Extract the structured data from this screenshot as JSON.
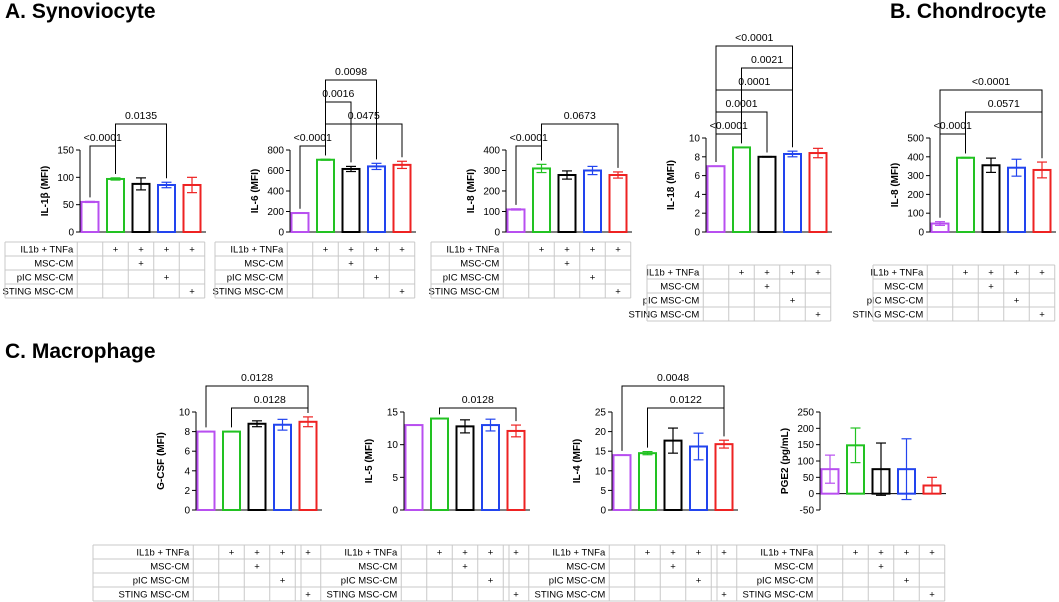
{
  "sections": {
    "a": "A. Synoviocyte",
    "b": "B. Chondrocyte",
    "c": "C. Macrophage"
  },
  "colors": [
    "#b84ff0",
    "#22c222",
    "#000000",
    "#2244ee",
    "#ee2222"
  ],
  "condition_table": {
    "rows": [
      "IL1b + TNFa",
      "MSC-CM",
      "pIC MSC-CM",
      "STING MSC-CM"
    ],
    "marks": [
      [
        "",
        "+",
        "+",
        "+",
        "+"
      ],
      [
        "",
        "",
        "+",
        "",
        ""
      ],
      [
        "",
        "",
        "",
        "+",
        ""
      ],
      [
        "",
        "",
        "",
        "",
        "+"
      ]
    ]
  },
  "chart_data": [
    {
      "id": "syn-il1b",
      "type": "bar",
      "ylabel": "IL-1β (MFI)",
      "ylim": [
        0,
        150
      ],
      "yticks": [
        0,
        50,
        100,
        150
      ],
      "values": [
        55,
        97,
        88,
        86,
        86
      ],
      "errors": [
        1,
        2,
        11,
        5,
        14
      ],
      "comparisons": [
        {
          "from": 0,
          "to": 1,
          "label": "<0.0001"
        },
        {
          "from": 1,
          "to": 3,
          "label": "0.0135"
        }
      ]
    },
    {
      "id": "syn-il6",
      "type": "bar",
      "ylabel": "IL-6 (MFI)",
      "ylim": [
        0,
        800
      ],
      "yticks": [
        0,
        200,
        400,
        600,
        800
      ],
      "values": [
        185,
        705,
        615,
        640,
        655
      ],
      "errors": [
        3,
        5,
        25,
        30,
        35
      ],
      "comparisons": [
        {
          "from": 0,
          "to": 1,
          "label": "<0.0001"
        },
        {
          "from": 1,
          "to": 4,
          "label": "0.0475"
        },
        {
          "from": 1,
          "to": 2,
          "label": "0.0016"
        },
        {
          "from": 1,
          "to": 3,
          "label": "0.0098"
        }
      ]
    },
    {
      "id": "syn-il8",
      "type": "bar",
      "ylabel": "IL-8 (MFI)",
      "ylim": [
        0,
        400
      ],
      "yticks": [
        0,
        100,
        200,
        300,
        400
      ],
      "values": [
        110,
        310,
        278,
        300,
        278
      ],
      "errors": [
        3,
        20,
        20,
        20,
        15
      ],
      "comparisons": [
        {
          "from": 0,
          "to": 1,
          "label": "<0.0001"
        },
        {
          "from": 1,
          "to": 4,
          "label": "0.0673"
        }
      ]
    },
    {
      "id": "cho-il18",
      "type": "bar",
      "ylabel": "IL-18 (MFI)",
      "ylim": [
        0,
        10
      ],
      "yticks": [
        0,
        2,
        4,
        6,
        8,
        10
      ],
      "values": [
        7,
        9,
        8,
        8.3,
        8.4
      ],
      "errors": [
        0.02,
        0.02,
        0.03,
        0.3,
        0.5
      ],
      "comparisons": [
        {
          "from": 0,
          "to": 1,
          "label": "<0.0001"
        },
        {
          "from": 0,
          "to": 2,
          "label": "0.0001"
        },
        {
          "from": 0,
          "to": 3,
          "label": "0.0001"
        },
        {
          "from": 1,
          "to": 3,
          "label": "0.0021"
        },
        {
          "from": 0,
          "to": 3,
          "label": "<0.0001"
        }
      ]
    },
    {
      "id": "cho-il8",
      "type": "bar",
      "ylabel": "IL-8 (MFI)",
      "ylim": [
        0,
        500
      ],
      "yticks": [
        0,
        100,
        200,
        300,
        400,
        500
      ],
      "values": [
        45,
        395,
        355,
        342,
        330
      ],
      "errors": [
        10,
        2,
        38,
        45,
        42
      ],
      "comparisons": [
        {
          "from": 0,
          "to": 1,
          "label": "<0.0001"
        },
        {
          "from": 1,
          "to": 4,
          "label": "0.0571"
        },
        {
          "from": 0,
          "to": 4,
          "label": "<0.0001"
        }
      ]
    },
    {
      "id": "mac-gcsf",
      "type": "bar",
      "ylabel": "G-CSF (MFI)",
      "ylim": [
        0,
        10
      ],
      "yticks": [
        0,
        2,
        4,
        6,
        8,
        10
      ],
      "values": [
        8,
        8,
        8.8,
        8.7,
        9
      ],
      "errors": [
        0.02,
        0.02,
        0.3,
        0.55,
        0.5
      ],
      "comparisons": [
        {
          "from": 1,
          "to": 4,
          "label": "0.0128"
        },
        {
          "from": 0,
          "to": 4,
          "label": "0.0128"
        }
      ]
    },
    {
      "id": "mac-il5",
      "type": "bar",
      "ylabel": "IL-5 (MFI)",
      "ylim": [
        0,
        15
      ],
      "yticks": [
        0,
        5,
        10,
        15
      ],
      "values": [
        13,
        14,
        12.8,
        13,
        12.1
      ],
      "errors": [
        0.02,
        0.02,
        1,
        0.9,
        0.9
      ],
      "comparisons": [
        {
          "from": 1,
          "to": 4,
          "label": "0.0128"
        }
      ]
    },
    {
      "id": "mac-il4",
      "type": "bar",
      "ylabel": "IL-4 (MFI)",
      "ylim": [
        0,
        25
      ],
      "yticks": [
        0,
        5,
        10,
        15,
        20,
        25
      ],
      "values": [
        14,
        14.5,
        17.7,
        16.2,
        16.8
      ],
      "errors": [
        0.05,
        0.4,
        3.2,
        3.4,
        1
      ],
      "comparisons": [
        {
          "from": 1,
          "to": 4,
          "label": "0.0122"
        },
        {
          "from": 0,
          "to": 4,
          "label": "0.0048"
        }
      ]
    },
    {
      "id": "mac-pge2",
      "type": "bar",
      "ylabel": "PGE2 (pg/mL)",
      "ylim": [
        -50,
        250
      ],
      "yticks": [
        -50,
        0,
        50,
        100,
        150,
        200,
        250
      ],
      "values": [
        75,
        148,
        75,
        75,
        25
      ],
      "errors": [
        43,
        53,
        80,
        93,
        25
      ],
      "comparisons": []
    }
  ]
}
